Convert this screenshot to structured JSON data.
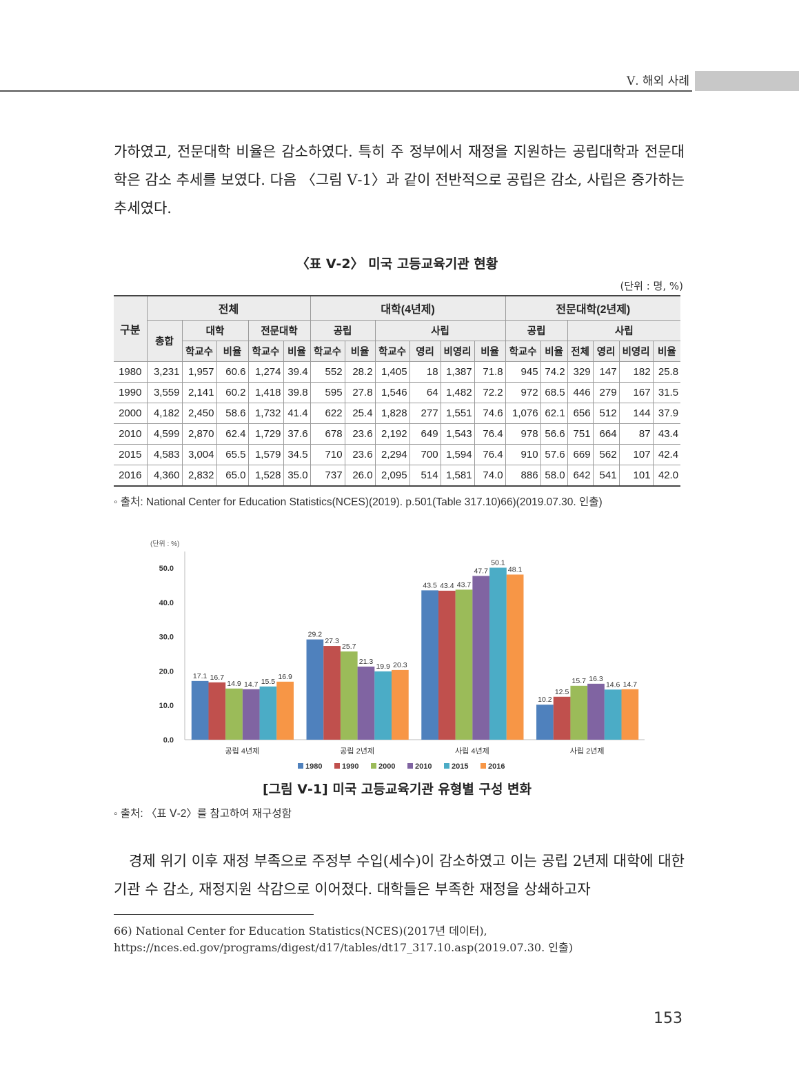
{
  "header": {
    "section_title": "Ⅴ. 해외 사례"
  },
  "paragraph1": "가하였고, 전문대학 비율은 감소하였다. 특히 주 정부에서 재정을 지원하는 공립대학과 전문대학은 감소 추세를 보였다. 다음 〈그림 Ⅴ-1〉과 같이 전반적으로 공립은 감소, 사립은 증가하는 추세였다.",
  "table": {
    "title": "〈표 Ⅴ-2〉 미국 고등교육기관 현황",
    "unit": "(단위 : 명, %)",
    "header": {
      "gubun": "구분",
      "total": "전체",
      "univ4": "대학(4년제)",
      "college2": "전문대학(2년제)",
      "sum": "총합",
      "univ": "대학",
      "college": "전문대학",
      "public": "공립",
      "private": "사립",
      "public2": "공립",
      "private2": "사립",
      "sub": [
        "학교수",
        "비율",
        "학교수",
        "비율",
        "학교수",
        "비율",
        "학교수",
        "영리",
        "비영리",
        "비율",
        "학교수",
        "비율",
        "전체",
        "영리",
        "비영리",
        "비율"
      ]
    },
    "rows": [
      [
        "1980",
        "3,231",
        "1,957",
        "60.6",
        "1,274",
        "39.4",
        "552",
        "28.2",
        "1,405",
        "18",
        "1,387",
        "71.8",
        "945",
        "74.2",
        "329",
        "147",
        "182",
        "25.8"
      ],
      [
        "1990",
        "3,559",
        "2,141",
        "60.2",
        "1,418",
        "39.8",
        "595",
        "27.8",
        "1,546",
        "64",
        "1,482",
        "72.2",
        "972",
        "68.5",
        "446",
        "279",
        "167",
        "31.5"
      ],
      [
        "2000",
        "4,182",
        "2,450",
        "58.6",
        "1,732",
        "41.4",
        "622",
        "25.4",
        "1,828",
        "277",
        "1,551",
        "74.6",
        "1,076",
        "62.1",
        "656",
        "512",
        "144",
        "37.9"
      ],
      [
        "2010",
        "4,599",
        "2,870",
        "62.4",
        "1,729",
        "37.6",
        "678",
        "23.6",
        "2,192",
        "649",
        "1,543",
        "76.4",
        "978",
        "56.6",
        "751",
        "664",
        "87",
        "43.4"
      ],
      [
        "2015",
        "4,583",
        "3,004",
        "65.5",
        "1,579",
        "34.5",
        "710",
        "23.6",
        "2,294",
        "700",
        "1,594",
        "76.4",
        "910",
        "57.6",
        "669",
        "562",
        "107",
        "42.4"
      ],
      [
        "2016",
        "4,360",
        "2,832",
        "65.0",
        "1,528",
        "35.0",
        "737",
        "26.0",
        "2,095",
        "514",
        "1,581",
        "74.0",
        "886",
        "58.0",
        "642",
        "541",
        "101",
        "42.0"
      ]
    ],
    "source": "◦ 출처: National Center for Education Statistics(NCES)(2019). p.501(Table 317.10)66)(2019.07.30. 인출)"
  },
  "chart_data": {
    "type": "bar",
    "unit_label": "(단위 : %)",
    "categories": [
      "공립 4년제",
      "공립 2년제",
      "사립 4년제",
      "사립 2년제"
    ],
    "ylim": [
      0,
      55
    ],
    "yticks": [
      "0.0",
      "10.0",
      "20.0",
      "30.0",
      "40.0",
      "50.0"
    ],
    "legend_position": "bottom",
    "series": [
      {
        "name": "1980",
        "color": "#4f81bd",
        "values": [
          17.1,
          29.2,
          43.5,
          10.2
        ]
      },
      {
        "name": "1990",
        "color": "#c0504d",
        "values": [
          16.7,
          27.3,
          43.4,
          12.5
        ]
      },
      {
        "name": "2000",
        "color": "#9bbb59",
        "values": [
          14.9,
          25.7,
          43.7,
          15.7
        ]
      },
      {
        "name": "2010",
        "color": "#8064a2",
        "values": [
          14.7,
          21.3,
          47.7,
          16.3
        ]
      },
      {
        "name": "2015",
        "color": "#4bacc6",
        "values": [
          15.5,
          19.9,
          50.1,
          14.6
        ]
      },
      {
        "name": "2016",
        "color": "#f79646",
        "values": [
          16.9,
          20.3,
          48.1,
          14.7
        ]
      }
    ],
    "grid": false
  },
  "figure": {
    "title": "[그림 Ⅴ-1] 미국 고등교육기관 유형별 구성 변화",
    "source": "◦ 출처: 〈표 Ⅴ-2〉를 참고하여 재구성함"
  },
  "paragraph2": "경제 위기 이후 재정 부족으로 주정부 수입(세수)이 감소하였고 이는 공립 2년제 대학에 대한 기관 수 감소, 재정지원 삭감으로 이어졌다. 대학들은 부족한 재정을 상쇄하고자",
  "footnote": "66) National Center for Education Statistics(NCES)(2017년 데이터), https://nces.ed.gov/programs/digest/d17/tables/dt17_317.10.asp(2019.07.30. 인출)",
  "page_number": "153"
}
